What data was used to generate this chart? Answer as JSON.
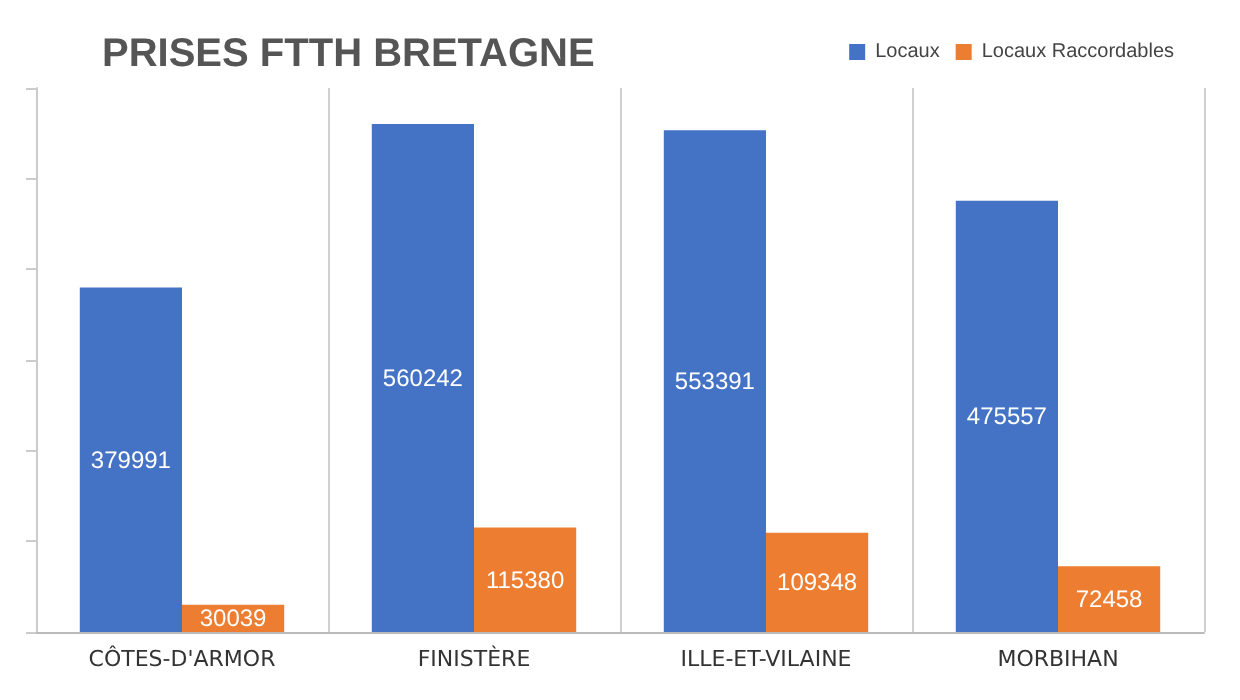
{
  "chart_data": {
    "type": "bar",
    "title": "PRISES FTTH BRETAGNE",
    "categories": [
      "CÔTES-D'ARMOR",
      "FINISTÈRE",
      "ILLE-ET-VILAINE",
      "MORBIHAN"
    ],
    "series": [
      {
        "name": "Locaux",
        "color": "#4472c4",
        "values": [
          379991,
          560242,
          553391,
          475557
        ]
      },
      {
        "name": "Locaux Raccordables",
        "color": "#ed7d31",
        "values": [
          30039,
          115380,
          109348,
          72458
        ]
      }
    ],
    "data_labels": true,
    "legend": "top right",
    "grid": "x",
    "tick_labels": "x"
  }
}
